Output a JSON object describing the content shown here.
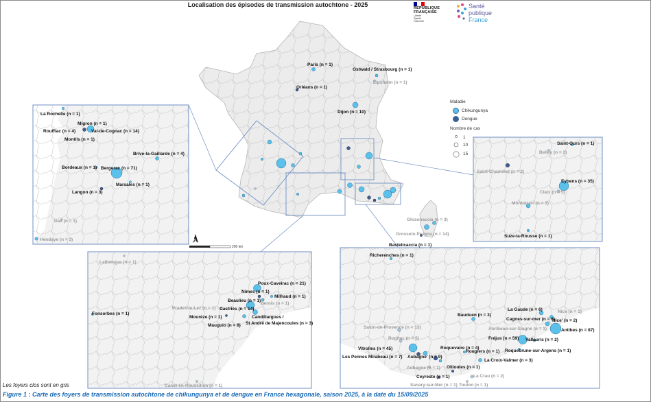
{
  "title": "Localisation des épisodes de transmission autochtone - 2025",
  "logos": {
    "rf_line1": "RÉPUBLIQUE",
    "rf_line2": "FRANÇAISE",
    "rf_motto1": "Liberté",
    "rf_motto2": "Égalité",
    "rf_motto3": "Fraternité",
    "sp_line1": "Santé",
    "sp_line2": "publique",
    "sp_line3": "France"
  },
  "legend": {
    "disease_title": "Maladie",
    "chik": "Chikungunya",
    "dengue": "Dengue",
    "cases_title": "Nombre de cas",
    "sizes": [
      "1",
      "10",
      "15"
    ],
    "chik_color": "#5bc1ea",
    "dengue_color": "#3d5e91",
    "closed_color": "#9a9a9a"
  },
  "scale_label": "200 km",
  "north": "N",
  "note": "Les foyers clos sont en gris",
  "caption": "Figure 1 : Carte des foyers de transmission autochtone de chikungunya et de dengue en France hexagonale, saison 2025, à la date du 15/09/2025",
  "main_labels": {
    "paris": "Paris (n = 1)",
    "strasbourg": "Ostwald / Strasbourg (n = 1)",
    "lipsheim": "Lipsheim (n = 1)",
    "orleans": "Orléans (n = 1)",
    "dijon": "Dijon (n = 10)",
    "ghisonaccia": "Ghisonaccia (n = 3)",
    "grosseto": "Grosseto Prugna (n = 14)",
    "bastelicaccia": "Bastelicaccia (n = 1)"
  },
  "sw_labels": {
    "larochelle": "La Rochelle (n = 1)",
    "migron": "Migron (n = 1)",
    "rouffiac": "Rouffiac (n = 4)",
    "valdecognac": "Val-de-Cognac (n = 14)",
    "montils": "Montils (n = 1)",
    "brive": "Brive-la-Gaillarde (n = 4)",
    "bordeaux": "Bordeaux (n = 1)",
    "bergerac": "Bergerac (n = 71)",
    "marsales": "Marsales (n =  1)",
    "langon": "Langon (n = 3)",
    "dax": "Dax (n = 1)",
    "hendaye": "Hendaye (n = 3)"
  },
  "ra_labels": {
    "saintours": "Saint-Ours (n = 1)",
    "belley": "Belley (n = 2)",
    "saintchamond": "Saint-Chamond (n = 2)",
    "eybens": "Eybens (n = 35)",
    "claix": "Claix (n = 5)",
    "montoison": "Montoison (n = 3)",
    "suze": "Suze-la-Rousse (n = 1)"
  },
  "occ_labels": {
    "lalbenque": "Lalbenque (n = 1)",
    "poux": "Poux-Caveirac (n = 21)",
    "nimes": "Nimes (n = 1)",
    "milhaud": "Milhaud (n = 1)",
    "beaulieu": "Beaulieu (n = 1)",
    "bernis": "Bernis (n = 1)",
    "prades": "Prades-le-Lez (n = 1)",
    "castries": "Castries (n = 14)",
    "fonsorbes": "Fonsorbes (n = 1)",
    "moureze": "Mourèze (n = 1)",
    "candillargues": "Candillargues /",
    "standre": "St André de Majencoules (n = 3)",
    "maugulo": "Mauguio (n = 8)",
    "canet": "Canet-en-Roussillon (n = 1)"
  },
  "paca_labels": {
    "richerenches": "Richerenches (n = 1)",
    "bauduen": "Bauduen (n = 3)",
    "lagaude": "La Gaude (n = 6)",
    "nice1": "Nice (n = 1)",
    "cagnes": "Cagnes-sur-mer (n = 8)",
    "nice2": "Nice' (n = 2)",
    "salon": "Salon-de-Provence (n = 13)",
    "auribeau": "Auribeau-sur-Siagne (n = 1)",
    "antibes": "Antibes (n = 87)",
    "rognac": "Rognac (n = 5)",
    "frejus": "Fréjus (n = 59)",
    "vallauris": "Vallauris (n = 2)",
    "vitrolles": "Vitrolles (n = 45)",
    "roquevaire": "Roquevaire (n = 4)",
    "roquebrune": "Roquebrune-sur-Argens (n = 1)",
    "pennes": "Les Pennes Mirabeau (n = 7)",
    "aubagne1": "Aubagne' (n = 9)",
    "rougiers": "Rougiers (n = 1)",
    "lacroix": "La Croix-Valmer (n = 3)",
    "aubagne2": "Aubagne (n = 1)",
    "ollioules": "Ollioules (n = 1)",
    "ceyreste": "Ceyreste (n = 1)",
    "lacrau": "La Crau (n = 2)",
    "sanary": "Sanary-sur-Mer (n = 1)",
    "toulon": "Toulon (n = 1)"
  }
}
